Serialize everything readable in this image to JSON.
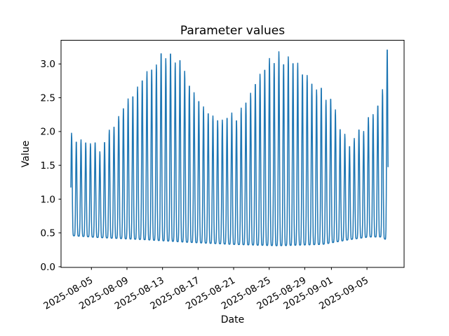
{
  "chart_data": {
    "type": "line",
    "title": "Parameter values",
    "xlabel": "Date",
    "ylabel": "Value",
    "line_color": "#1f77b4",
    "line_width": 1.5,
    "background_color": "#ffffff",
    "axis_color": "#000000",
    "grid": "off",
    "legend": "none",
    "epoch_day_zero": "2025-08-01",
    "x_tick_labels": [
      "2025-08-05",
      "2025-08-09",
      "2025-08-13",
      "2025-08-17",
      "2025-08-21",
      "2025-08-25",
      "2025-08-29",
      "2025-09-01",
      "2025-09-05"
    ],
    "x_tick_day_offsets": [
      4,
      8,
      12,
      16,
      20,
      24,
      28,
      31,
      35
    ],
    "x_tick_rotation_deg": 30,
    "y_tick_labels": [
      "0.0",
      "0.5",
      "1.0",
      "1.5",
      "2.0",
      "2.5",
      "3.0"
    ],
    "y_tick_values": [
      0.0,
      0.5,
      1.0,
      1.5,
      2.0,
      2.5,
      3.0
    ],
    "xlim_day_offsets": [
      0.58,
      39.17
    ],
    "ylim": [
      -0.01,
      3.35
    ],
    "series": {
      "name": "parameter-values",
      "description": "Dense oscillating time series: sharp daily-scale spikes whose peak envelope rises and falls in two humps with a final spike",
      "start_day_offset": 1.69,
      "end_day_offset": 37.38,
      "start_value": 1.13,
      "end_value": 1.26,
      "oscillation_period_days": 0.53,
      "first_peak_day_offset": 1.77,
      "peak_sharpness": 3.2,
      "peak_jitter": 0.02,
      "envelope_peak_keypoints": [
        [
          1.7,
          1.97
        ],
        [
          2.25,
          1.86
        ],
        [
          2.8,
          1.9
        ],
        [
          3.35,
          1.84
        ],
        [
          3.9,
          1.8
        ],
        [
          4.4,
          1.86
        ],
        [
          4.95,
          1.72
        ],
        [
          5.5,
          1.85
        ],
        [
          6.0,
          2.0
        ],
        [
          6.6,
          2.1
        ],
        [
          7.1,
          2.25
        ],
        [
          7.6,
          2.35
        ],
        [
          8.2,
          2.48
        ],
        [
          8.7,
          2.55
        ],
        [
          9.2,
          2.68
        ],
        [
          9.8,
          2.78
        ],
        [
          10.3,
          2.88
        ],
        [
          10.8,
          2.95
        ],
        [
          11.3,
          3.0
        ],
        [
          11.9,
          3.19
        ],
        [
          12.45,
          3.04
        ],
        [
          13.0,
          3.22
        ],
        [
          13.55,
          2.98
        ],
        [
          14.1,
          3.1
        ],
        [
          14.55,
          2.84
        ],
        [
          15.05,
          2.7
        ],
        [
          15.6,
          2.58
        ],
        [
          16.1,
          2.45
        ],
        [
          16.6,
          2.35
        ],
        [
          17.1,
          2.3
        ],
        [
          17.65,
          2.25
        ],
        [
          18.15,
          2.17
        ],
        [
          18.7,
          2.15
        ],
        [
          19.2,
          2.22
        ],
        [
          19.75,
          2.3
        ],
        [
          20.3,
          2.16
        ],
        [
          20.8,
          2.32
        ],
        [
          21.35,
          2.45
        ],
        [
          21.9,
          2.58
        ],
        [
          22.4,
          2.7
        ],
        [
          22.95,
          2.83
        ],
        [
          23.5,
          2.95
        ],
        [
          24.0,
          3.1
        ],
        [
          24.55,
          3.02
        ],
        [
          25.1,
          3.17
        ],
        [
          25.6,
          3.03
        ],
        [
          26.15,
          3.12
        ],
        [
          26.65,
          3.02
        ],
        [
          27.2,
          3.0
        ],
        [
          27.75,
          2.88
        ],
        [
          28.3,
          2.84
        ],
        [
          28.85,
          2.7
        ],
        [
          29.4,
          2.59
        ],
        [
          29.9,
          2.69
        ],
        [
          30.45,
          2.45
        ],
        [
          31.0,
          2.49
        ],
        [
          31.5,
          2.29
        ],
        [
          32.05,
          2.03
        ],
        [
          32.6,
          1.96
        ],
        [
          33.1,
          1.75
        ],
        [
          33.65,
          1.91
        ],
        [
          34.2,
          2.09
        ],
        [
          34.7,
          2.0
        ],
        [
          35.25,
          2.25
        ],
        [
          35.8,
          2.24
        ],
        [
          36.3,
          2.45
        ],
        [
          36.85,
          2.67
        ],
        [
          37.28,
          3.22
        ]
      ],
      "envelope_trough_keypoints": [
        [
          1.7,
          0.46
        ],
        [
          5.0,
          0.43
        ],
        [
          10.0,
          0.4
        ],
        [
          15.0,
          0.36
        ],
        [
          20.0,
          0.33
        ],
        [
          25.0,
          0.31
        ],
        [
          30.0,
          0.33
        ],
        [
          33.0,
          0.4
        ],
        [
          35.2,
          0.44
        ],
        [
          36.6,
          0.44
        ],
        [
          37.4,
          0.38
        ]
      ]
    }
  }
}
